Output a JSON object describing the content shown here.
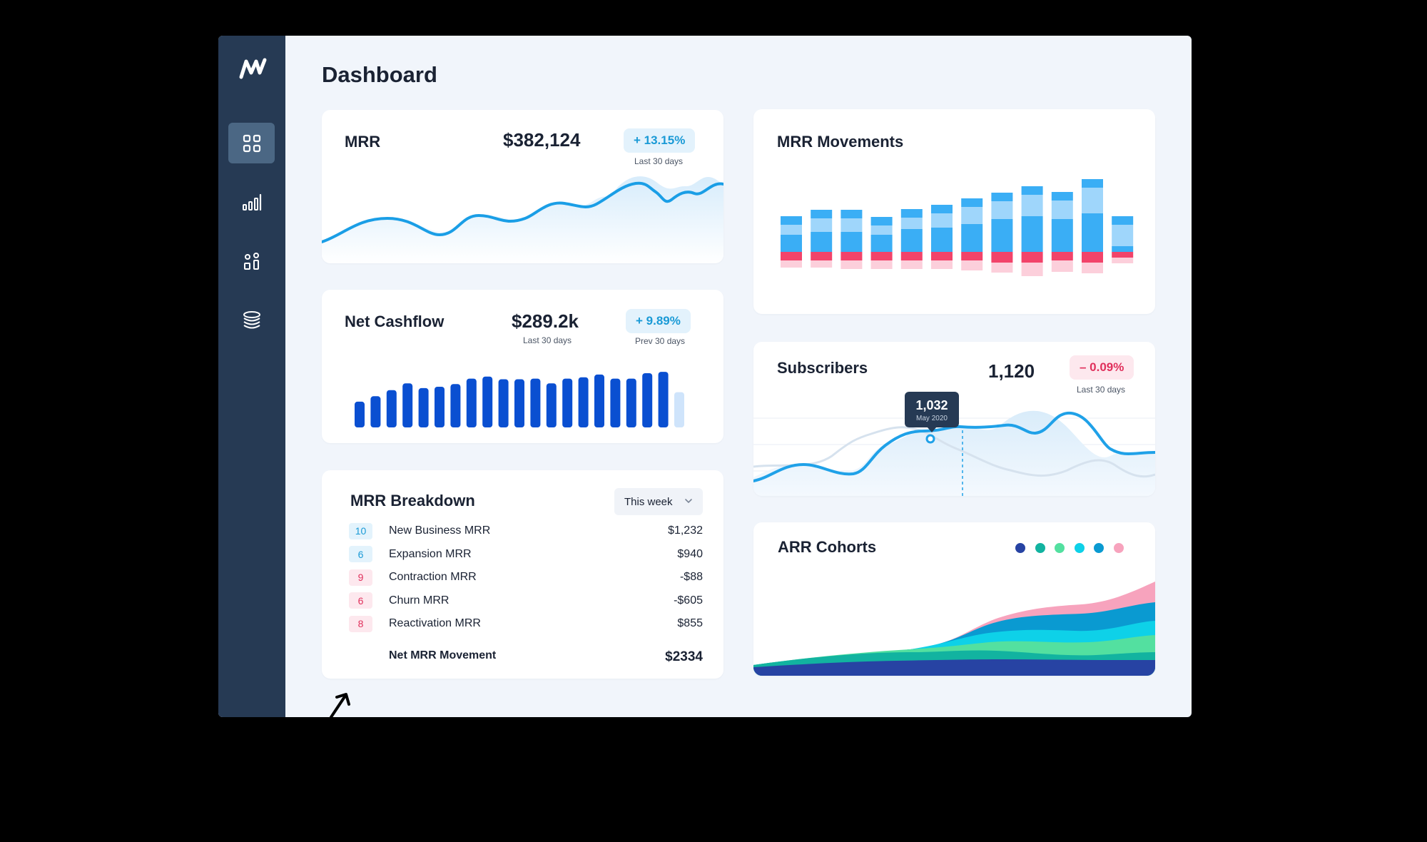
{
  "app": {
    "page_title": "Dashboard"
  },
  "sidebar": {
    "logo": "chartmogul-logo",
    "items": [
      {
        "icon": "dashboard-grid-icon",
        "active": true
      },
      {
        "icon": "bar-chart-icon",
        "active": false
      },
      {
        "icon": "shapes-icon",
        "active": false
      },
      {
        "icon": "database-icon",
        "active": false
      }
    ]
  },
  "mrr_card": {
    "title": "MRR",
    "value": "$382,124",
    "change": "+ 13.15%",
    "period": "Last 30 days",
    "change_color": "#1a9ad6"
  },
  "cashflow_card": {
    "title": "Net Cashflow",
    "value": "$289.2k",
    "value_label": "Last 30 days",
    "change": "+ 9.89%",
    "change_label": "Prev 30 days",
    "bar_color": "#0a4fd1",
    "bar_values": [
      38,
      46,
      55,
      65,
      58,
      60,
      64,
      72,
      75,
      71,
      71,
      72,
      65,
      72,
      74,
      78,
      72,
      72,
      80,
      82,
      52
    ],
    "last_bar_is_projection": true
  },
  "breakdown_card": {
    "title": "MRR Breakdown",
    "dropdown_value": "This week",
    "rows": [
      {
        "count": "10",
        "label": "New Business MRR",
        "value": "$1,232",
        "kind": "pos"
      },
      {
        "count": "6",
        "label": "Expansion MRR",
        "value": "$940",
        "kind": "pos"
      },
      {
        "count": "9",
        "label": "Contraction MRR",
        "value": "-$88",
        "kind": "neg"
      },
      {
        "count": "6",
        "label": "Churn MRR",
        "value": "-$605",
        "kind": "neg"
      },
      {
        "count": "8",
        "label": "Reactivation MRR",
        "value": "$855",
        "kind": "neg"
      }
    ],
    "total_label": "Net MRR Movement",
    "total_value": "$2334"
  },
  "movements_card": {
    "title": "MRR Movements",
    "colors": {
      "new_business": "#3aaef5",
      "expansion": "#9fd6fb",
      "contraction": "#f2436a",
      "churn": "#fccfdb"
    },
    "bars": [
      {
        "new_business": 24,
        "expansion": 14,
        "contraction": 12,
        "churn": 10
      },
      {
        "new_business": 28,
        "expansion": 19,
        "contraction": 12,
        "churn": 10
      },
      {
        "new_business": 28,
        "expansion": 19,
        "contraction": 12,
        "churn": 12
      },
      {
        "new_business": 24,
        "expansion": 13,
        "contraction": 12,
        "churn": 12
      },
      {
        "new_business": 32,
        "expansion": 16,
        "contraction": 12,
        "churn": 12
      },
      {
        "new_business": 34,
        "expansion": 20,
        "contraction": 12,
        "churn": 12
      },
      {
        "new_business": 39,
        "expansion": 24,
        "contraction": 12,
        "churn": 14
      },
      {
        "new_business": 46,
        "expansion": 25,
        "contraction": 15,
        "churn": 14
      },
      {
        "new_business": 50,
        "expansion": 30,
        "contraction": 15,
        "churn": 19
      },
      {
        "new_business": 46,
        "expansion": 26,
        "contraction": 12,
        "churn": 16
      },
      {
        "new_business": 54,
        "expansion": 36,
        "contraction": 15,
        "churn": 15
      },
      {
        "new_business": 8,
        "expansion": 30,
        "contraction": 8,
        "churn": 8
      }
    ]
  },
  "subscribers_card": {
    "title": "Subscribers",
    "value": "1,120",
    "change": "– 0.09%",
    "period": "Last 30 days",
    "tooltip_value": "1,032",
    "tooltip_date": "May 2020",
    "line_color": "#1fa1e8"
  },
  "cohorts_card": {
    "title": "ARR Cohorts",
    "legend_colors": [
      "#2743a3",
      "#12b3a0",
      "#53e0a0",
      "#0ed1e8",
      "#0a9ad1",
      "#f7a3bd"
    ]
  }
}
